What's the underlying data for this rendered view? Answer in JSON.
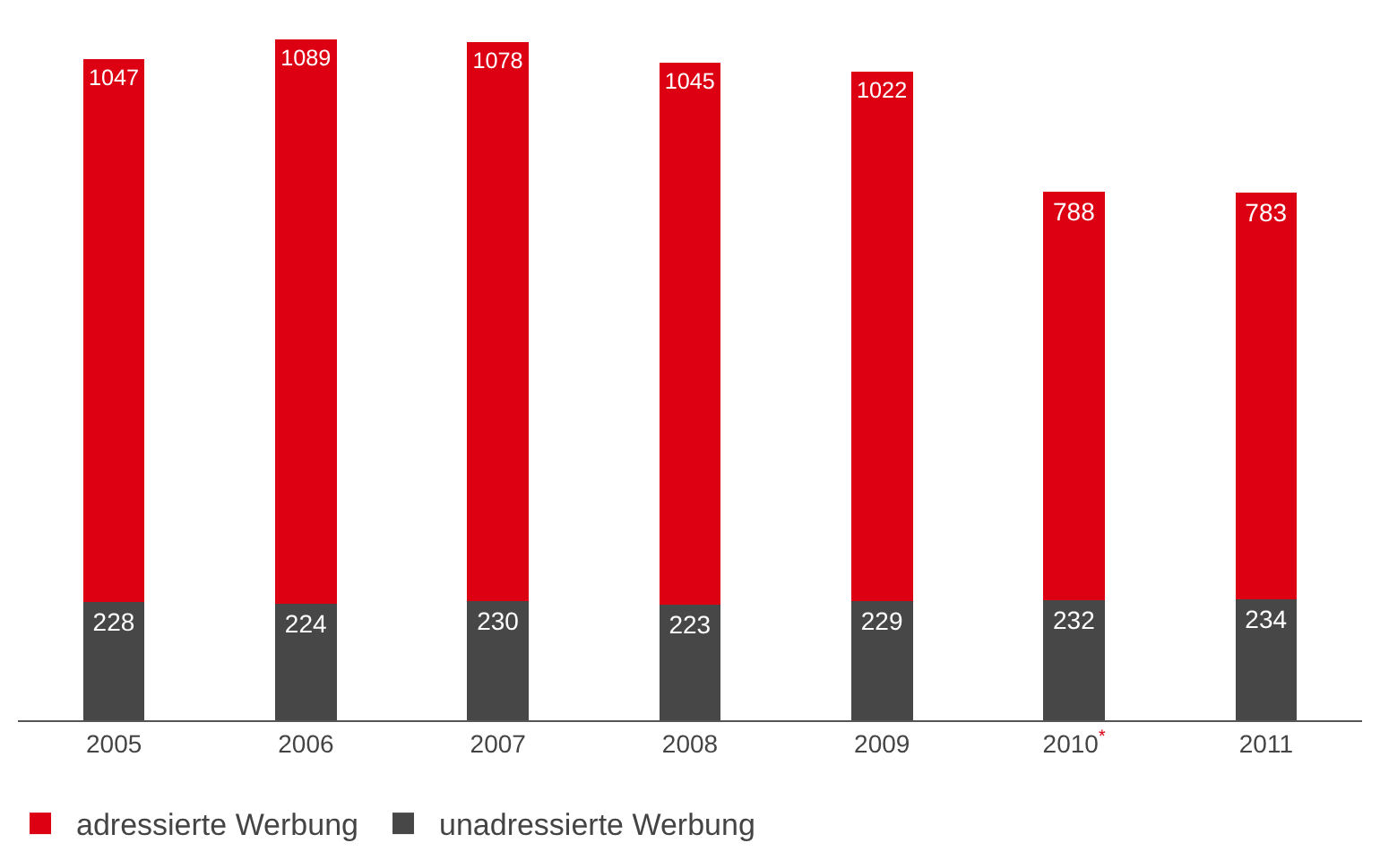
{
  "chart_data": {
    "type": "bar",
    "stacked": true,
    "data_labels": true,
    "legend": "bottom left",
    "categories": [
      "2005",
      "2006",
      "2007",
      "2008",
      "2009",
      "2010$^{*}$",
      "2011"
    ],
    "series": [
      {
        "name": "unadressierte Werbung",
        "color": "#474747",
        "values": [
          228,
          224,
          230,
          223,
          229,
          232,
          234
        ]
      },
      {
        "name": "adressierte Werbung",
        "color": "#dc0012",
        "values": [
          1047,
          1089,
          1078,
          1045,
          1022,
          788,
          783
        ]
      }
    ]
  }
}
